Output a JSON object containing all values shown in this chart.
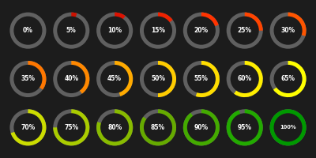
{
  "background_color": "#1c1c1c",
  "percentages": [
    0,
    5,
    10,
    15,
    20,
    25,
    30,
    35,
    40,
    45,
    50,
    55,
    60,
    65,
    70,
    75,
    80,
    85,
    90,
    95,
    100
  ],
  "grid_cols": 7,
  "grid_rows": 3,
  "ring_bg_color": "#606060",
  "text_color": "#ffffff",
  "figwidth": 4.0,
  "figheight": 2.0,
  "dpi": 100,
  "colors_by_pct": {
    "0": "#606060",
    "5": "#cc1100",
    "10": "#dd1100",
    "15": "#ee2200",
    "20": "#ff3300",
    "25": "#ff4400",
    "30": "#ff5500",
    "35": "#ff7700",
    "40": "#ff8800",
    "45": "#ffaa00",
    "50": "#ffcc00",
    "55": "#ffdd00",
    "60": "#ffee00",
    "65": "#ffff00",
    "70": "#ccdd00",
    "75": "#aacc00",
    "80": "#88bb00",
    "85": "#66aa00",
    "90": "#44aa00",
    "95": "#22aa00",
    "100": "#009900"
  }
}
